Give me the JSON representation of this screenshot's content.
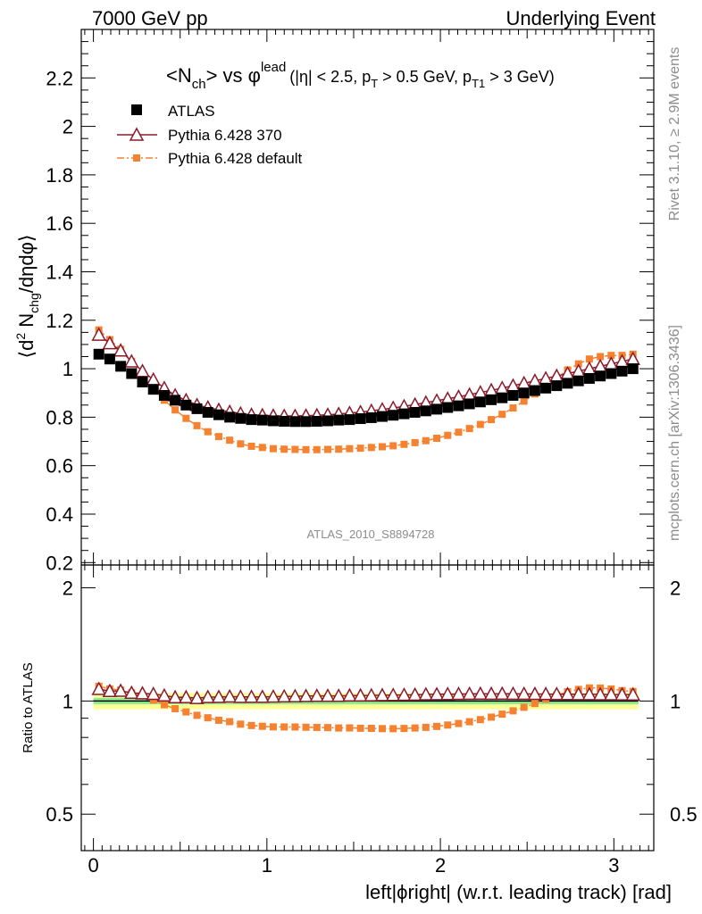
{
  "header": {
    "left": "7000 GeV pp",
    "right": "Underlying Event"
  },
  "side_labels": {
    "rivet": "Rivet 3.1.10, ≥ 2.9M events",
    "mcplots": "mcplots.cern.ch [arXiv:1306.3436]"
  },
  "colors": {
    "atlas": "#000000",
    "pythia_370": "#8b1a2b",
    "pythia_default": "#f58231",
    "band_inner": "#90ee90",
    "band_outer": "#ffff99"
  },
  "chart_data": {
    "type": "scatter",
    "title": {
      "main": "<N",
      "main_sub": "ch",
      "vs": "> vs φ",
      "vs_sup": "lead",
      "cut_1": "(|η| < 2.5, p",
      "cut_1_sub": "T",
      "cut_2": " > 0.5 GeV, p",
      "cut_2_sub": "T1",
      "cut_3": " > 3 GeV)"
    },
    "ylabel": {
      "open": "⟨d",
      "sup": "2",
      "mid": " N",
      "sub": "chg",
      "close": "/dηdφ⟩"
    },
    "xlabel": "left|ϕright| (w.r.t. leading track) [rad]",
    "ratio_ylabel": "Ratio to ATLAS",
    "analysis_id": "ATLAS_2010_S8894728",
    "xlim": [
      -0.07,
      3.23
    ],
    "ylim": [
      0.19,
      2.4
    ],
    "ratio_ylim": [
      0.4,
      2.3
    ],
    "x_ticks": [
      0,
      1,
      2,
      3
    ],
    "x_tick_labels": [
      "0",
      "1",
      "2",
      "3"
    ],
    "y_ticks": [
      0.2,
      0.4,
      0.6,
      0.8,
      1,
      1.2,
      1.4,
      1.6,
      1.8,
      2,
      2.2
    ],
    "y_tick_labels": [
      "0.2",
      "0.4",
      "0.6",
      "0.8",
      "1",
      "1.2",
      "1.4",
      "1.6",
      "1.8",
      "2",
      "2.2"
    ],
    "ratio_ticks": [
      0.5,
      1,
      2
    ],
    "ratio_tick_labels": [
      "0.5",
      "1",
      "2"
    ],
    "x": [
      0.0314,
      0.0942,
      0.1571,
      0.2199,
      0.2827,
      0.3456,
      0.4084,
      0.4712,
      0.5341,
      0.5969,
      0.6597,
      0.7226,
      0.7854,
      0.8482,
      0.9111,
      0.9739,
      1.0367,
      1.0996,
      1.1624,
      1.2252,
      1.2881,
      1.3509,
      1.4137,
      1.4765,
      1.5394,
      1.6022,
      1.665,
      1.7279,
      1.7907,
      1.8535,
      1.9164,
      1.9792,
      2.042,
      2.1049,
      2.1677,
      2.2305,
      2.2934,
      2.3562,
      2.419,
      2.4819,
      2.5447,
      2.6075,
      2.6704,
      2.7332,
      2.796,
      2.8588,
      2.9217,
      2.9845,
      3.0473,
      3.1102
    ],
    "series": [
      {
        "name": "ATLAS",
        "marker": "square",
        "values": [
          1.06,
          1.04,
          1.01,
          0.98,
          0.945,
          0.915,
          0.89,
          0.87,
          0.85,
          0.835,
          0.82,
          0.81,
          0.8,
          0.795,
          0.79,
          0.788,
          0.785,
          0.783,
          0.782,
          0.782,
          0.783,
          0.785,
          0.788,
          0.79,
          0.794,
          0.798,
          0.803,
          0.808,
          0.814,
          0.82,
          0.826,
          0.833,
          0.84,
          0.847,
          0.855,
          0.863,
          0.872,
          0.88,
          0.89,
          0.9,
          0.91,
          0.92,
          0.93,
          0.94,
          0.95,
          0.96,
          0.97,
          0.98,
          0.99,
          1.0
        ]
      },
      {
        "name": "Pythia 6.428 370",
        "marker": "open-triangle",
        "values": [
          1.14,
          1.105,
          1.075,
          1.03,
          0.99,
          0.955,
          0.92,
          0.89,
          0.87,
          0.85,
          0.84,
          0.83,
          0.822,
          0.815,
          0.81,
          0.808,
          0.806,
          0.805,
          0.805,
          0.806,
          0.808,
          0.81,
          0.813,
          0.817,
          0.821,
          0.826,
          0.832,
          0.838,
          0.845,
          0.852,
          0.86,
          0.868,
          0.876,
          0.884,
          0.893,
          0.902,
          0.911,
          0.92,
          0.93,
          0.94,
          0.95,
          0.96,
          0.97,
          0.98,
          0.99,
          1.0,
          1.01,
          1.02,
          1.03,
          1.04
        ]
      },
      {
        "name": "Pythia 6.428 default",
        "marker": "filled-square-dashdot",
        "values": [
          1.16,
          1.12,
          1.08,
          1.03,
          0.975,
          0.92,
          0.87,
          0.83,
          0.795,
          0.765,
          0.74,
          0.72,
          0.705,
          0.69,
          0.68,
          0.675,
          0.67,
          0.668,
          0.667,
          0.666,
          0.666,
          0.667,
          0.668,
          0.67,
          0.672,
          0.675,
          0.678,
          0.682,
          0.688,
          0.695,
          0.703,
          0.713,
          0.725,
          0.738,
          0.753,
          0.77,
          0.79,
          0.812,
          0.838,
          0.866,
          0.896,
          0.93,
          0.963,
          0.995,
          1.02,
          1.04,
          1.05,
          1.055,
          1.055,
          1.06
        ]
      }
    ],
    "ratio_band": {
      "inner": [
        0.98,
        1.02
      ],
      "outer": [
        0.95,
        1.05
      ]
    }
  }
}
